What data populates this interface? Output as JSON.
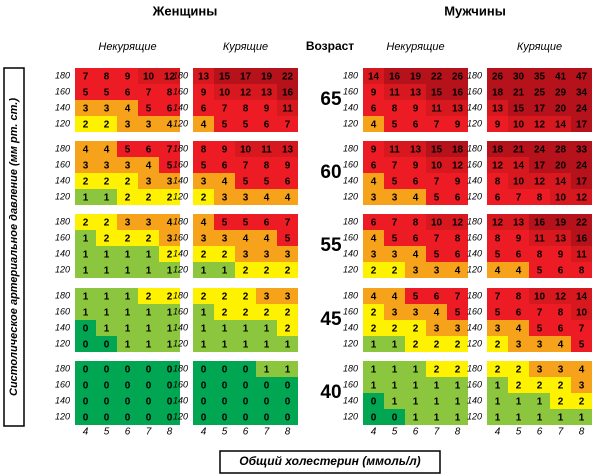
{
  "y_axis_label": "Систолическое артериальное давление (мм рт. ст.)",
  "x_axis_label": "Общий холестерин (ммоль/л)",
  "age_label": "Возраст",
  "ages": [
    65,
    60,
    55,
    45,
    40
  ],
  "bp_levels": [
    180,
    160,
    140,
    120
  ],
  "cholesterol_levels": [
    4,
    5,
    6,
    7,
    8
  ],
  "color_scale": [
    {
      "min": 0,
      "color": "#00a651",
      "text_color": "#ffffff"
    },
    {
      "min": 1,
      "color": "#8cc63f",
      "text_color": "#000000"
    },
    {
      "min": 2,
      "color": "#fff200",
      "text_color": "#000000"
    },
    {
      "min": 3,
      "color": "#f7a21b",
      "text_color": "#000000"
    },
    {
      "min": 5,
      "color": "#ed1c24",
      "text_color": "#000000"
    },
    {
      "min": 10,
      "color": "#d7191f",
      "text_color": "#ffffff"
    },
    {
      "min": 15,
      "color": "#b5121b",
      "text_color": "#ffffff"
    }
  ],
  "groups": [
    {
      "title": "Женщины",
      "panels": [
        {
          "label": "Некурящие",
          "values": [
            [
              [
                7,
                8,
                9,
                10,
                12
              ],
              [
                5,
                5,
                6,
                7,
                8
              ],
              [
                3,
                3,
                4,
                5,
                6
              ],
              [
                2,
                2,
                3,
                3,
                4
              ]
            ],
            [
              [
                4,
                4,
                5,
                6,
                7
              ],
              [
                3,
                3,
                3,
                4,
                5
              ],
              [
                2,
                2,
                2,
                3,
                3
              ],
              [
                1,
                1,
                2,
                2,
                2
              ]
            ],
            [
              [
                2,
                2,
                3,
                3,
                4
              ],
              [
                1,
                2,
                2,
                2,
                3
              ],
              [
                1,
                1,
                1,
                1,
                2
              ],
              [
                1,
                1,
                1,
                1,
                1
              ]
            ],
            [
              [
                1,
                1,
                1,
                2,
                2
              ],
              [
                1,
                1,
                1,
                1,
                1
              ],
              [
                0,
                1,
                1,
                1,
                1
              ],
              [
                0,
                0,
                1,
                1,
                1
              ]
            ],
            [
              [
                0,
                0,
                0,
                0,
                0
              ],
              [
                0,
                0,
                0,
                0,
                0
              ],
              [
                0,
                0,
                0,
                0,
                0
              ],
              [
                0,
                0,
                0,
                0,
                0
              ]
            ]
          ]
        },
        {
          "label": "Курящие",
          "values": [
            [
              [
                13,
                15,
                17,
                19,
                22
              ],
              [
                9,
                10,
                12,
                13,
                16
              ],
              [
                6,
                7,
                8,
                9,
                11
              ],
              [
                4,
                5,
                5,
                6,
                7
              ]
            ],
            [
              [
                8,
                9,
                10,
                11,
                13
              ],
              [
                5,
                6,
                7,
                8,
                9
              ],
              [
                3,
                4,
                5,
                5,
                6
              ],
              [
                2,
                3,
                3,
                4,
                4
              ]
            ],
            [
              [
                4,
                5,
                5,
                6,
                7
              ],
              [
                3,
                3,
                4,
                4,
                5
              ],
              [
                2,
                2,
                3,
                3,
                3
              ],
              [
                1,
                1,
                2,
                2,
                2
              ]
            ],
            [
              [
                2,
                2,
                2,
                3,
                3
              ],
              [
                1,
                2,
                2,
                2,
                2
              ],
              [
                1,
                1,
                1,
                1,
                2
              ],
              [
                1,
                1,
                1,
                1,
                1
              ]
            ],
            [
              [
                0,
                0,
                0,
                1,
                1
              ],
              [
                0,
                0,
                0,
                0,
                0
              ],
              [
                0,
                0,
                0,
                0,
                0
              ],
              [
                0,
                0,
                0,
                0,
                0
              ]
            ]
          ]
        }
      ]
    },
    {
      "title": "Мужчины",
      "panels": [
        {
          "label": "Некурящие",
          "values": [
            [
              [
                14,
                16,
                19,
                22,
                26
              ],
              [
                9,
                11,
                13,
                15,
                16
              ],
              [
                6,
                8,
                9,
                11,
                13
              ],
              [
                4,
                5,
                6,
                7,
                9
              ]
            ],
            [
              [
                9,
                11,
                13,
                15,
                18
              ],
              [
                6,
                7,
                9,
                10,
                12
              ],
              [
                4,
                5,
                6,
                7,
                9
              ],
              [
                3,
                3,
                4,
                5,
                6
              ]
            ],
            [
              [
                6,
                7,
                8,
                10,
                12
              ],
              [
                4,
                5,
                6,
                7,
                8
              ],
              [
                3,
                3,
                4,
                5,
                6
              ],
              [
                2,
                2,
                3,
                3,
                4
              ]
            ],
            [
              [
                4,
                4,
                5,
                6,
                7
              ],
              [
                2,
                3,
                3,
                4,
                5
              ],
              [
                2,
                2,
                2,
                3,
                3
              ],
              [
                1,
                1,
                2,
                2,
                2
              ]
            ],
            [
              [
                1,
                1,
                1,
                2,
                2
              ],
              [
                1,
                1,
                1,
                1,
                1
              ],
              [
                0,
                1,
                1,
                1,
                1
              ],
              [
                0,
                0,
                1,
                1,
                1
              ]
            ]
          ]
        },
        {
          "label": "Курящие",
          "values": [
            [
              [
                26,
                30,
                35,
                41,
                47
              ],
              [
                18,
                21,
                25,
                29,
                34
              ],
              [
                13,
                15,
                17,
                20,
                24
              ],
              [
                9,
                10,
                12,
                14,
                17
              ]
            ],
            [
              [
                18,
                21,
                24,
                28,
                33
              ],
              [
                12,
                14,
                17,
                20,
                24
              ],
              [
                8,
                10,
                12,
                14,
                17
              ],
              [
                6,
                7,
                8,
                10,
                12
              ]
            ],
            [
              [
                12,
                13,
                16,
                19,
                22
              ],
              [
                8,
                9,
                11,
                13,
                16
              ],
              [
                5,
                6,
                8,
                9,
                11
              ],
              [
                4,
                4,
                5,
                6,
                8
              ]
            ],
            [
              [
                7,
                8,
                10,
                12,
                14
              ],
              [
                5,
                6,
                7,
                8,
                10
              ],
              [
                3,
                4,
                5,
                6,
                7
              ],
              [
                2,
                3,
                3,
                4,
                5
              ]
            ],
            [
              [
                2,
                2,
                3,
                3,
                4
              ],
              [
                1,
                2,
                2,
                2,
                3
              ],
              [
                1,
                1,
                1,
                2,
                2
              ],
              [
                1,
                1,
                1,
                1,
                1
              ]
            ]
          ]
        }
      ]
    }
  ]
}
